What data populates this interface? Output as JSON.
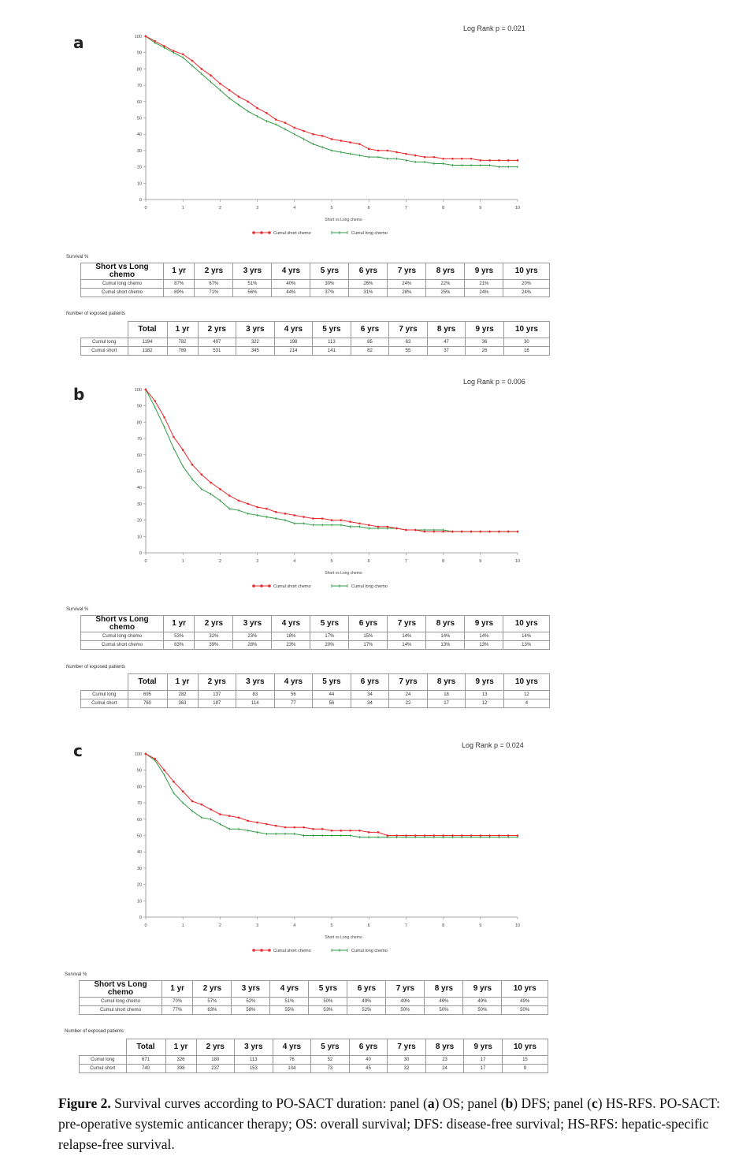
{
  "panels": [
    {
      "id": "a",
      "label": "a",
      "log_rank": "Log Rank p = 0.021",
      "survival_label": "Survival %",
      "exposed_label": "Number of exposed patients",
      "chart_data": {
        "type": "line",
        "xlabel": "Short vs Long chemo",
        "ylabel": "",
        "xlim": [
          0,
          10
        ],
        "ylim": [
          0,
          100
        ],
        "x_ticks": [
          "0",
          "1",
          "2",
          "3",
          "4",
          "5",
          "6",
          "7",
          "8",
          "9",
          "10"
        ],
        "y_ticks": [
          "0",
          "10",
          "20",
          "30",
          "40",
          "50",
          "60",
          "70",
          "80",
          "90",
          "100"
        ],
        "legend": "bottom",
        "series": [
          {
            "name": "Cumul short chemo",
            "color": "#e8282b",
            "x": [
              0,
              0.25,
              0.5,
              0.75,
              1,
              1.25,
              1.5,
              1.75,
              2,
              2.25,
              2.5,
              2.75,
              3,
              3.25,
              3.5,
              3.75,
              4,
              4.25,
              4.5,
              4.75,
              5,
              5.25,
              5.5,
              5.75,
              6,
              6.25,
              6.5,
              6.75,
              7,
              7.25,
              7.5,
              7.75,
              8,
              8.25,
              8.5,
              8.75,
              9,
              9.25,
              9.5,
              9.75,
              10
            ],
            "y": [
              100,
              97,
              94,
              91,
              89,
              85,
              80,
              76,
              71,
              67,
              63,
              60,
              56,
              53,
              49,
              47,
              44,
              42,
              40,
              39,
              37,
              36,
              35,
              34,
              31,
              30,
              30,
              29,
              28,
              27,
              26,
              26,
              25,
              25,
              25,
              25,
              24,
              24,
              24,
              24,
              24
            ]
          },
          {
            "name": "Cumul long chemo",
            "color": "#2e9a44",
            "x": [
              0,
              0.25,
              0.5,
              0.75,
              1,
              1.25,
              1.5,
              1.75,
              2,
              2.25,
              2.5,
              2.75,
              3,
              3.25,
              3.5,
              3.75,
              4,
              4.25,
              4.5,
              4.75,
              5,
              5.25,
              5.5,
              5.75,
              6,
              6.25,
              6.5,
              6.75,
              7,
              7.25,
              7.5,
              7.75,
              8,
              8.25,
              8.5,
              8.75,
              9,
              9.25,
              9.5,
              9.75,
              10
            ],
            "y": [
              100,
              96,
              93,
              90,
              87,
              82,
              77,
              72,
              67,
              62,
              58,
              54,
              51,
              48,
              46,
              43,
              40,
              37,
              34,
              32,
              30,
              29,
              28,
              27,
              26,
              26,
              25,
              25,
              24,
              23,
              23,
              22,
              22,
              21,
              21,
              21,
              21,
              21,
              20,
              20,
              20
            ]
          }
        ]
      },
      "survival_table": {
        "header": "Short vs Long chemo",
        "years": [
          "1 yr",
          "2 yrs",
          "3 yrs",
          "4 yrs",
          "5 yrs",
          "6 yrs",
          "7 yrs",
          "8 yrs",
          "9 yrs",
          "10 yrs"
        ],
        "rows": [
          {
            "label": "Cumul long chemo",
            "values": [
              "87%",
              "67%",
              "51%",
              "40%",
              "30%",
              "26%",
              "24%",
              "22%",
              "21%",
              "20%"
            ]
          },
          {
            "label": "Cumul short chemo",
            "values": [
              "89%",
              "71%",
              "56%",
              "44%",
              "37%",
              "31%",
              "28%",
              "25%",
              "24%",
              "24%"
            ]
          }
        ]
      },
      "exposed_table": {
        "header": "Total",
        "years": [
          "1 yr",
          "2 yrs",
          "3 yrs",
          "4 yrs",
          "5 yrs",
          "6 yrs",
          "7 yrs",
          "8 yrs",
          "9 yrs",
          "10 yrs"
        ],
        "rows": [
          {
            "label": "Cumul long",
            "total": "1194",
            "values": [
              "782",
              "497",
              "322",
              "198",
              "113",
              "85",
              "63",
              "47",
              "36",
              "30"
            ]
          },
          {
            "label": "Cumul short",
            "total": "1182",
            "values": [
              "789",
              "531",
              "345",
              "214",
              "141",
              "82",
              "55",
              "37",
              "26",
              "16"
            ]
          }
        ]
      }
    },
    {
      "id": "b",
      "label": "b",
      "log_rank": "Log Rank p = 0.006",
      "survival_label": "Survival %",
      "exposed_label": "Number of exposed patients",
      "chart_data": {
        "type": "line",
        "xlabel": "Short vs Long chemo",
        "ylabel": "",
        "xlim": [
          0,
          10
        ],
        "ylim": [
          0,
          100
        ],
        "x_ticks": [
          "0",
          "1",
          "2",
          "3",
          "4",
          "5",
          "6",
          "7",
          "8",
          "9",
          "10"
        ],
        "y_ticks": [
          "0",
          "10",
          "20",
          "30",
          "40",
          "50",
          "60",
          "70",
          "80",
          "90",
          "100"
        ],
        "legend": "bottom",
        "series": [
          {
            "name": "Cumul short chemo",
            "color": "#e8282b",
            "x": [
              0,
              0.25,
              0.5,
              0.75,
              1,
              1.25,
              1.5,
              1.75,
              2,
              2.25,
              2.5,
              2.75,
              3,
              3.25,
              3.5,
              3.75,
              4,
              4.25,
              4.5,
              4.75,
              5,
              5.25,
              5.5,
              5.75,
              6,
              6.25,
              6.5,
              6.75,
              7,
              7.25,
              7.5,
              7.75,
              8,
              8.25,
              8.5,
              8.75,
              9,
              9.25,
              9.5,
              9.75,
              10
            ],
            "y": [
              100,
              93,
              83,
              71,
              63,
              54,
              48,
              43,
              39,
              35,
              32,
              30,
              28,
              27,
              25,
              24,
              23,
              22,
              21,
              21,
              20,
              20,
              19,
              18,
              17,
              16,
              16,
              15,
              14,
              14,
              13,
              13,
              13,
              13,
              13,
              13,
              13,
              13,
              13,
              13,
              13
            ]
          },
          {
            "name": "Cumul long chemo",
            "color": "#2e9a44",
            "x": [
              0,
              0.25,
              0.5,
              0.75,
              1,
              1.25,
              1.5,
              1.75,
              2,
              2.25,
              2.5,
              2.75,
              3,
              3.25,
              3.5,
              3.75,
              4,
              4.25,
              4.5,
              4.75,
              5,
              5.25,
              5.5,
              5.75,
              6,
              6.25,
              6.5,
              6.75,
              7,
              7.25,
              7.5,
              7.75,
              8,
              8.25,
              8.5,
              8.75,
              9,
              9.25,
              9.5,
              9.75,
              10
            ],
            "y": [
              100,
              89,
              77,
              64,
              53,
              45,
              39,
              36,
              32,
              27,
              26,
              24,
              23,
              22,
              21,
              20,
              18,
              18,
              17,
              17,
              17,
              17,
              16,
              16,
              15,
              15,
              15,
              15,
              14,
              14,
              14,
              14,
              14,
              13,
              13,
              13,
              13,
              13,
              13,
              13,
              13
            ]
          }
        ]
      },
      "survival_table": {
        "header": "Short vs Long chemo",
        "years": [
          "1 yr",
          "2 yrs",
          "3 yrs",
          "4 yrs",
          "5 yrs",
          "6 yrs",
          "7 yrs",
          "8 yrs",
          "9 yrs",
          "10 yrs"
        ],
        "rows": [
          {
            "label": "Cumul long chemo",
            "values": [
              "53%",
              "32%",
              "23%",
              "18%",
              "17%",
              "15%",
              "14%",
              "14%",
              "14%",
              "14%"
            ]
          },
          {
            "label": "Cumul short chemo",
            "values": [
              "63%",
              "39%",
              "28%",
              "23%",
              "20%",
              "17%",
              "14%",
              "13%",
              "13%",
              "13%"
            ]
          }
        ]
      },
      "exposed_table": {
        "header": "Total",
        "years": [
          "1 yr",
          "2 yrs",
          "3 yrs",
          "4 yrs",
          "5 yrs",
          "6 yrs",
          "7 yrs",
          "8 yrs",
          "9 yrs",
          "10 yrs"
        ],
        "rows": [
          {
            "label": "Cumul long",
            "total": "695",
            "values": [
              "282",
              "137",
              "83",
              "56",
              "44",
              "34",
              "24",
              "18",
              "13",
              "12"
            ]
          },
          {
            "label": "Cumul short",
            "total": "760",
            "values": [
              "363",
              "187",
              "114",
              "77",
              "56",
              "34",
              "22",
              "17",
              "12",
              "4"
            ]
          }
        ]
      }
    },
    {
      "id": "c",
      "label": "c",
      "log_rank": "Log Rank p = 0.024",
      "survival_label": "Survival %",
      "exposed_label": "Number of exposed patients",
      "chart_data": {
        "type": "line",
        "xlabel": "Short vs Long chemo",
        "ylabel": "",
        "xlim": [
          0,
          10
        ],
        "ylim": [
          0,
          100
        ],
        "x_ticks": [
          "0",
          "1",
          "2",
          "3",
          "4",
          "5",
          "6",
          "7",
          "8",
          "9",
          "10"
        ],
        "y_ticks": [
          "0",
          "10",
          "20",
          "30",
          "40",
          "50",
          "60",
          "70",
          "80",
          "90",
          "100"
        ],
        "legend": "bottom",
        "series": [
          {
            "name": "Cumul short chemo",
            "color": "#e8282b",
            "x": [
              0,
              0.25,
              0.5,
              0.75,
              1,
              1.25,
              1.5,
              1.75,
              2,
              2.25,
              2.5,
              2.75,
              3,
              3.25,
              3.5,
              3.75,
              4,
              4.25,
              4.5,
              4.75,
              5,
              5.25,
              5.5,
              5.75,
              6,
              6.25,
              6.5,
              6.75,
              7,
              7.25,
              7.5,
              7.75,
              8,
              8.25,
              8.5,
              8.75,
              9,
              9.25,
              9.5,
              9.75,
              10
            ],
            "y": [
              100,
              97,
              90,
              83,
              77,
              71,
              69,
              66,
              63,
              62,
              61,
              59,
              58,
              57,
              56,
              55,
              55,
              55,
              54,
              54,
              53,
              53,
              53,
              53,
              52,
              52,
              50,
              50,
              50,
              50,
              50,
              50,
              50,
              50,
              50,
              50,
              50,
              50,
              50,
              50,
              50
            ]
          },
          {
            "name": "Cumul long chemo",
            "color": "#2e9a44",
            "x": [
              0,
              0.25,
              0.5,
              0.75,
              1,
              1.25,
              1.5,
              1.75,
              2,
              2.25,
              2.5,
              2.75,
              3,
              3.25,
              3.5,
              3.75,
              4,
              4.25,
              4.5,
              4.75,
              5,
              5.25,
              5.5,
              5.75,
              6,
              6.25,
              6.5,
              6.75,
              7,
              7.25,
              7.5,
              7.75,
              8,
              8.25,
              8.5,
              8.75,
              9,
              9.25,
              9.5,
              9.75,
              10
            ],
            "y": [
              100,
              96,
              87,
              76,
              70,
              65,
              61,
              60,
              57,
              54,
              54,
              53,
              52,
              51,
              51,
              51,
              51,
              50,
              50,
              50,
              50,
              50,
              50,
              49,
              49,
              49,
              49,
              49,
              49,
              49,
              49,
              49,
              49,
              49,
              49,
              49,
              49,
              49,
              49,
              49,
              49
            ]
          }
        ]
      },
      "survival_table": {
        "header": "Short vs Long chemo",
        "years": [
          "1 yr",
          "2 yrs",
          "3 yrs",
          "4 yrs",
          "5 yrs",
          "6 yrs",
          "7 yrs",
          "8 yrs",
          "9 yrs",
          "10 yrs"
        ],
        "rows": [
          {
            "label": "Cumul long chemo",
            "values": [
              "70%",
              "57%",
              "52%",
              "51%",
              "50%",
              "49%",
              "49%",
              "49%",
              "49%",
              "49%"
            ]
          },
          {
            "label": "Cumul short chemo",
            "values": [
              "77%",
              "63%",
              "58%",
              "55%",
              "53%",
              "52%",
              "50%",
              "50%",
              "50%",
              "50%"
            ]
          }
        ]
      },
      "exposed_table": {
        "header": "Total",
        "years": [
          "1 yr",
          "2 yrs",
          "3 yrs",
          "4 yrs",
          "5 yrs",
          "6 yrs",
          "7 yrs",
          "8 yrs",
          "9 yrs",
          "10 yrs"
        ],
        "rows": [
          {
            "label": "Cumul long",
            "total": "671",
            "values": [
              "326",
              "180",
              "113",
              "76",
              "52",
              "40",
              "30",
              "23",
              "17",
              "15"
            ]
          },
          {
            "label": "Cumul short",
            "total": "740",
            "values": [
              "398",
              "237",
              "153",
              "104",
              "73",
              "45",
              "32",
              "24",
              "17",
              "9"
            ]
          }
        ]
      }
    }
  ],
  "caption": {
    "lead": "Figure 2.",
    "text_1": " Survival curves according to PO-SACT duration: panel (",
    "a": "a",
    "text_2": ") OS; panel (",
    "b": "b",
    "text_3": ") DFS; panel (",
    "c": "c",
    "text_4": ") HS-RFS. PO-SACT: pre-operative systemic anticancer therapy; OS: overall survival; DFS: disease-free survival; HS-RFS: hepatic-specific relapse-free survival."
  }
}
